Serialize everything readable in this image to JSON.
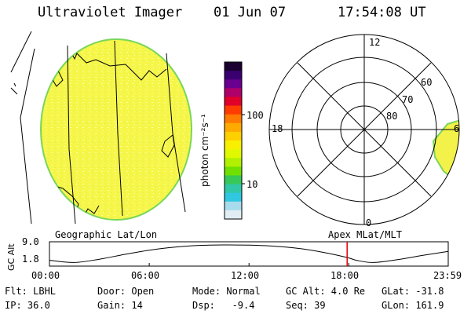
{
  "header": {
    "instrument": "Ultraviolet Imager",
    "date": "01 Jun 07",
    "time": "17:54:08 UT"
  },
  "colorbar": {
    "unit_label": "photon cm⁻²s⁻¹",
    "ticks": [
      "100",
      "10"
    ],
    "colors": [
      "#1a0030",
      "#3a0070",
      "#6a0090",
      "#b0006a",
      "#e0002a",
      "#ff3c00",
      "#ff7a00",
      "#ffaa00",
      "#ffd000",
      "#f8f000",
      "#e0f800",
      "#b0f000",
      "#70e000",
      "#38c858",
      "#30c8a8",
      "#30c8e0",
      "#a8dcec",
      "#e0eef4"
    ]
  },
  "polar_plot": {
    "mlt_labels": {
      "top": "12",
      "left": "18",
      "right": "6",
      "bottom": "0"
    },
    "lat_labels": [
      "60",
      "70",
      "80"
    ]
  },
  "left_caption": "Geographic Lat/Lon",
  "right_caption": "Apex MLat/MLT",
  "chart_data": {
    "type": "line",
    "title": "",
    "ylabel": "GC Alt",
    "yticks": [
      "9.0",
      "1.8"
    ],
    "ylim": [
      1.8,
      9.0
    ],
    "xlim_hours": [
      0,
      23.98
    ],
    "xtick_labels": [
      "00:00",
      "06:00",
      "12:00",
      "18:00",
      "23:59"
    ],
    "x_hours": [
      0,
      1.5,
      3,
      4.5,
      6,
      7.5,
      9,
      10.5,
      12,
      13.5,
      15,
      16.5,
      17.9,
      18.5,
      19.5,
      21,
      22.5,
      24
    ],
    "y_alt": [
      2.9,
      2.0,
      3.3,
      5.2,
      6.9,
      8.1,
      8.8,
      9.0,
      8.9,
      8.5,
      7.6,
      6.0,
      4.0,
      2.8,
      2.0,
      3.2,
      4.9,
      6.4
    ],
    "marker_hour": 17.9
  },
  "footer": {
    "row1": [
      "Flt: LBHL",
      "Door: Open",
      "Mode: Normal",
      "GC Alt: 4.0 Re",
      "GLat: -31.8"
    ],
    "row2": [
      "IP: 36.0",
      "Gain: 14",
      "Dsp:   -9.4",
      "Seq: 39",
      "GLon: 161.9"
    ]
  }
}
